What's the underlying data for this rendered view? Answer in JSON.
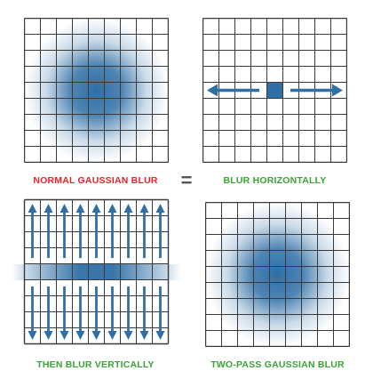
{
  "panels": [
    {
      "id": "normal",
      "caption": "NORMAL GAUSSIAN BLUR"
    },
    {
      "id": "horizontal",
      "caption": "BLUR HORIZONTALLY"
    },
    {
      "id": "vertical",
      "caption": "THEN BLUR VERTICALLY"
    },
    {
      "id": "two-pass",
      "caption": "TWO-PASS GAUSSIAN BLUR"
    }
  ],
  "equals_sign": "=",
  "colors": {
    "blur": "#2f6fa6",
    "grid": "#3a3a3a",
    "caption_red": "#e0262a",
    "caption_green": "#3aa335"
  }
}
